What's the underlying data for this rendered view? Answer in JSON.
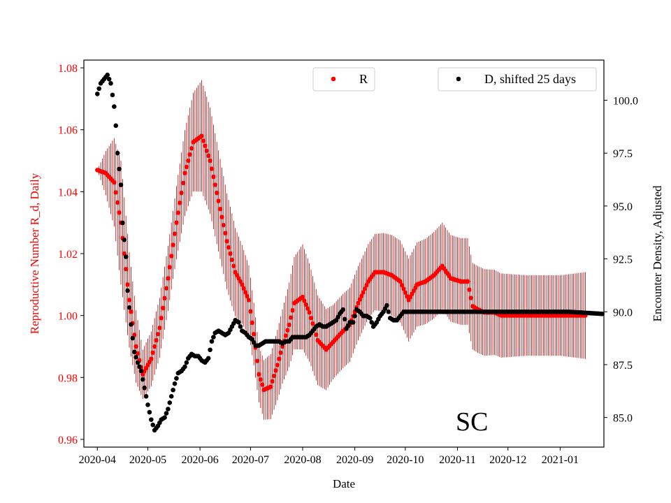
{
  "chart_data": {
    "type": "scatter",
    "x_label": "Date",
    "y_left_label": "Reproductive Number R_d, Daily",
    "y_right_label": "Encounter Density, Adjusted",
    "annotation": "SC",
    "x_ticks": [
      "2020-04",
      "2020-05",
      "2020-06",
      "2020-07",
      "2020-08",
      "2020-09",
      "2020-10",
      "2020-11",
      "2020-12",
      "2021-01"
    ],
    "y_left_ticks": [
      "0.96",
      "0.98",
      "1.00",
      "1.02",
      "1.04",
      "1.06",
      "1.08"
    ],
    "y_right_ticks": [
      "85.0",
      "87.5",
      "90.0",
      "92.5",
      "95.0",
      "97.5",
      "100.0"
    ],
    "y_left_range": [
      0.9575,
      1.0825
    ],
    "y_right_range": [
      83.6,
      101.9
    ],
    "x_range_days": [
      -8.0,
      301.0
    ],
    "x_origin": "2020-04-01",
    "colors": {
      "R": "#ff0000",
      "R_error": "#b00000",
      "D": "#000000",
      "left_axis_text": "#ff0000"
    },
    "legend": [
      {
        "label": "R",
        "color": "#ff0000",
        "position": "upper center"
      },
      {
        "label": "D, shifted 25 days",
        "color": "#000000",
        "position": "upper right"
      }
    ],
    "series_R": {
      "name": "R",
      "anchor_days": [
        0,
        5,
        10,
        14,
        19,
        23,
        27,
        32,
        37,
        42,
        47,
        52,
        57,
        62,
        67,
        72,
        77,
        82,
        86,
        90,
        93,
        96,
        99,
        103,
        107,
        110,
        114,
        117,
        122,
        126,
        131,
        136,
        141,
        146,
        150,
        155,
        161,
        165,
        170,
        175,
        180,
        185,
        190,
        195,
        200,
        205,
        210,
        216,
        220,
        223,
        226,
        230,
        233,
        236,
        240,
        245,
        250,
        255,
        260,
        265,
        270,
        275,
        280,
        285,
        290
      ],
      "anchor_values": [
        1.047,
        1.046,
        1.043,
        1.03,
        1.005,
        0.99,
        0.981,
        0.986,
        0.996,
        1.012,
        1.03,
        1.046,
        1.056,
        1.058,
        1.05,
        1.037,
        1.024,
        1.014,
        1.01,
        1.005,
        0.994,
        0.981,
        0.976,
        0.977,
        0.984,
        0.99,
        0.997,
        1.004,
        1.006,
        1.001,
        0.992,
        0.989,
        0.992,
        0.995,
        0.997,
        1.004,
        1.011,
        1.014,
        1.014,
        1.013,
        1.011,
        1.005,
        1.01,
        1.011,
        1.013,
        1.016,
        1.012,
        1.011,
        1.011,
        1.003,
        1.002,
        1.001,
        1.001,
        1.001,
        1.0,
        1.0,
        1.0,
        1.0,
        1.0,
        1.0,
        1.0,
        1.0,
        1.0,
        1.0,
        1.0
      ],
      "error_anchor_days": [
        0,
        14,
        27,
        45,
        62,
        80,
        96,
        110,
        122,
        140,
        160,
        175,
        200,
        230,
        255,
        275,
        290
      ],
      "error_halfwidth": [
        0.0,
        0.02,
        0.008,
        0.011,
        0.018,
        0.015,
        0.009,
        0.012,
        0.017,
        0.012,
        0.012,
        0.013,
        0.014,
        0.014,
        0.013,
        0.013,
        0.014
      ],
      "cross_marker_days": [
        190,
        195,
        200,
        204,
        208,
        212,
        216,
        220,
        224,
        228,
        232,
        236
      ]
    },
    "series_D": {
      "name": "D, shifted 25 days",
      "anchor_days": [
        0,
        2,
        4,
        6,
        8,
        10,
        11,
        12,
        14,
        15,
        17,
        18,
        20,
        22,
        24,
        26,
        28,
        30,
        32,
        34,
        36,
        38,
        40,
        42,
        44,
        46,
        48,
        50,
        52,
        54,
        56,
        58,
        60,
        62,
        64,
        66,
        68,
        70,
        72,
        74,
        76,
        78,
        80,
        82,
        84,
        86,
        88,
        90,
        92,
        94,
        96,
        98,
        100,
        102,
        104,
        106,
        108,
        110,
        112,
        114,
        116,
        118,
        120,
        122,
        124,
        126,
        128,
        130,
        132,
        134,
        136,
        138,
        140,
        142,
        144,
        146,
        148,
        150,
        152,
        154,
        156,
        158,
        160,
        162,
        164,
        166,
        168,
        170,
        172,
        174,
        176,
        178,
        180,
        182,
        184,
        190,
        200,
        220,
        240,
        260,
        280,
        300
      ],
      "anchor_values": [
        100.3,
        100.8,
        101.0,
        101.2,
        100.8,
        99.7,
        98.8,
        97.5,
        96.0,
        94.2,
        92.6,
        91.0,
        89.4,
        88.1,
        87.6,
        87.2,
        86.4,
        85.6,
        84.9,
        84.4,
        84.6,
        84.9,
        85.0,
        85.4,
        86.0,
        86.6,
        87.1,
        87.2,
        87.4,
        87.8,
        88.0,
        87.9,
        87.9,
        87.7,
        87.6,
        87.8,
        88.6,
        89.0,
        89.1,
        89.0,
        88.9,
        89.0,
        89.3,
        89.6,
        89.5,
        89.1,
        89.0,
        88.8,
        88.7,
        88.4,
        88.4,
        88.5,
        88.6,
        88.6,
        88.6,
        88.6,
        88.6,
        88.5,
        88.6,
        88.6,
        88.8,
        88.8,
        88.8,
        88.8,
        88.8,
        88.9,
        89.1,
        89.3,
        89.4,
        89.3,
        89.3,
        89.4,
        89.5,
        89.6,
        89.9,
        90.1,
        89.2,
        89.5,
        89.5,
        90.1,
        90.0,
        89.8,
        89.8,
        89.7,
        89.3,
        89.5,
        89.8,
        90.0,
        90.3,
        89.7,
        89.6,
        89.6,
        89.8,
        90.0,
        90.0,
        90.0,
        90.0,
        90.0,
        90.0,
        90.0,
        90.0,
        89.9
      ]
    }
  }
}
